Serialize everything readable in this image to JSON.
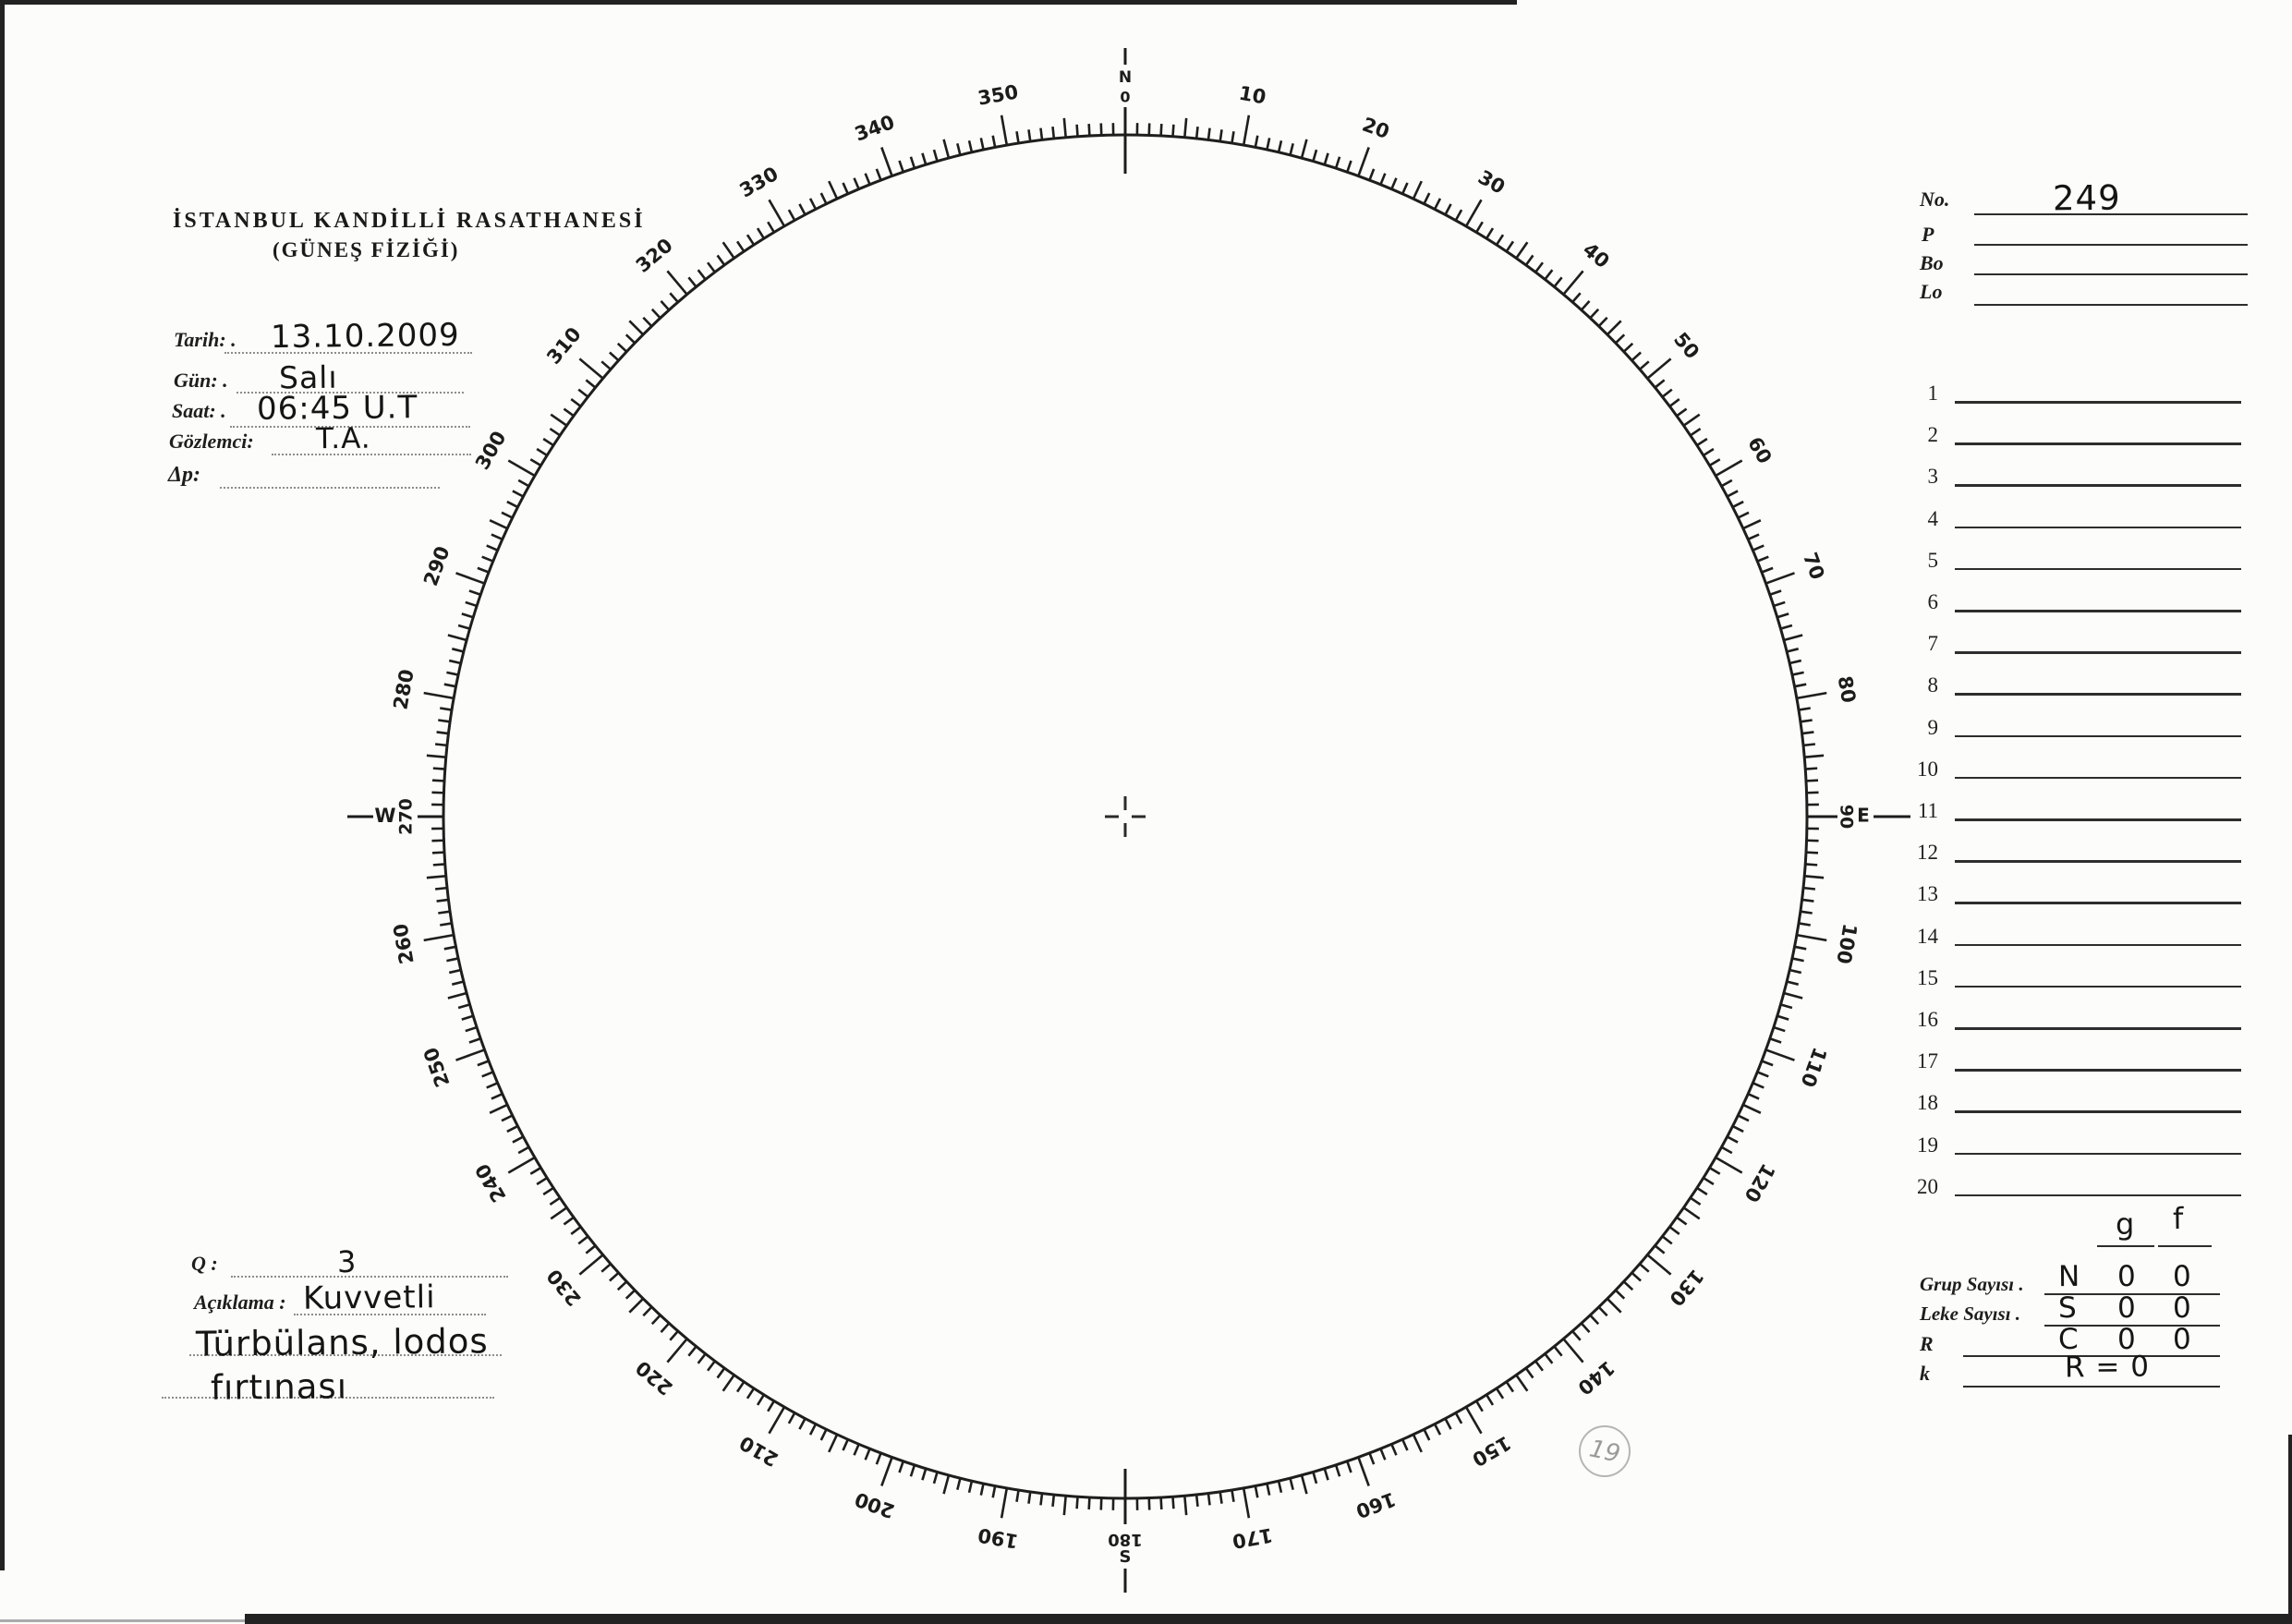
{
  "document": {
    "institution_line1": "İSTANBUL KANDİLLİ RASATHANESİ",
    "institution_line2": "(GÜNEŞ FİZİĞİ)"
  },
  "colors": {
    "ink": "#1f1f1f",
    "pencil": "#b5b5b5"
  },
  "observation": {
    "tarih_label": "Tarih: .",
    "tarih_value": "13.10.2009",
    "gun_label": "Gün: .",
    "gun_value": "Salı",
    "saat_label": "Saat: .",
    "saat_value": "06:45 U.T",
    "gozlemci_label": "Gözlemci:",
    "gozlemci_value": "T.A.",
    "dp_label": "Δp:",
    "dp_value": ""
  },
  "quality": {
    "q_label": "Q :",
    "q_value": "3",
    "aciklama_label": "Açıklama :",
    "aciklama_value_line1": "Kuvvetli",
    "aciklama_value_line2": "Türbülans, lodos",
    "aciklama_value_line3": "fırtınası"
  },
  "id_panel": {
    "no_label": "No.",
    "no_value": "249",
    "p_label": "P",
    "p_value": "",
    "bo_label": "Bo",
    "bo_value": "",
    "lo_label": "Lo",
    "lo_value": ""
  },
  "measure_list": {
    "rows": [
      "1",
      "2",
      "3",
      "4",
      "5",
      "6",
      "7",
      "8",
      "9",
      "10",
      "11",
      "12",
      "13",
      "14",
      "15",
      "16",
      "17",
      "18",
      "19",
      "20"
    ]
  },
  "summary": {
    "col_g": "g",
    "col_f": "f",
    "grup_label": "Grup Sayısı .",
    "grup_values": [
      "N",
      "0",
      "0"
    ],
    "leke_label": "Leke Sayısı .",
    "leke_values": [
      "S",
      "0",
      "0"
    ],
    "r_label": "R",
    "r_values": [
      "C",
      "0",
      "0"
    ],
    "k_label": "k",
    "k_value": "R = 0"
  },
  "solar_disk": {
    "degree_labels": [
      10,
      20,
      30,
      40,
      50,
      60,
      70,
      80,
      90,
      100,
      110,
      120,
      130,
      140,
      150,
      160,
      170,
      180,
      190,
      200,
      210,
      220,
      230,
      240,
      250,
      260,
      270,
      280,
      290,
      300,
      310,
      320,
      330,
      340,
      350
    ],
    "minor_tick_step": 1,
    "medium_tick_step": 5,
    "major_tick_step": 10,
    "cardinals": {
      "north": {
        "letter": "N",
        "degree": "0"
      },
      "east": {
        "letter": "E",
        "degree": "90"
      },
      "south": {
        "letter": "S",
        "degree": "180"
      },
      "west": {
        "letter": "W",
        "degree": "270"
      }
    }
  },
  "pencil_note": "19"
}
